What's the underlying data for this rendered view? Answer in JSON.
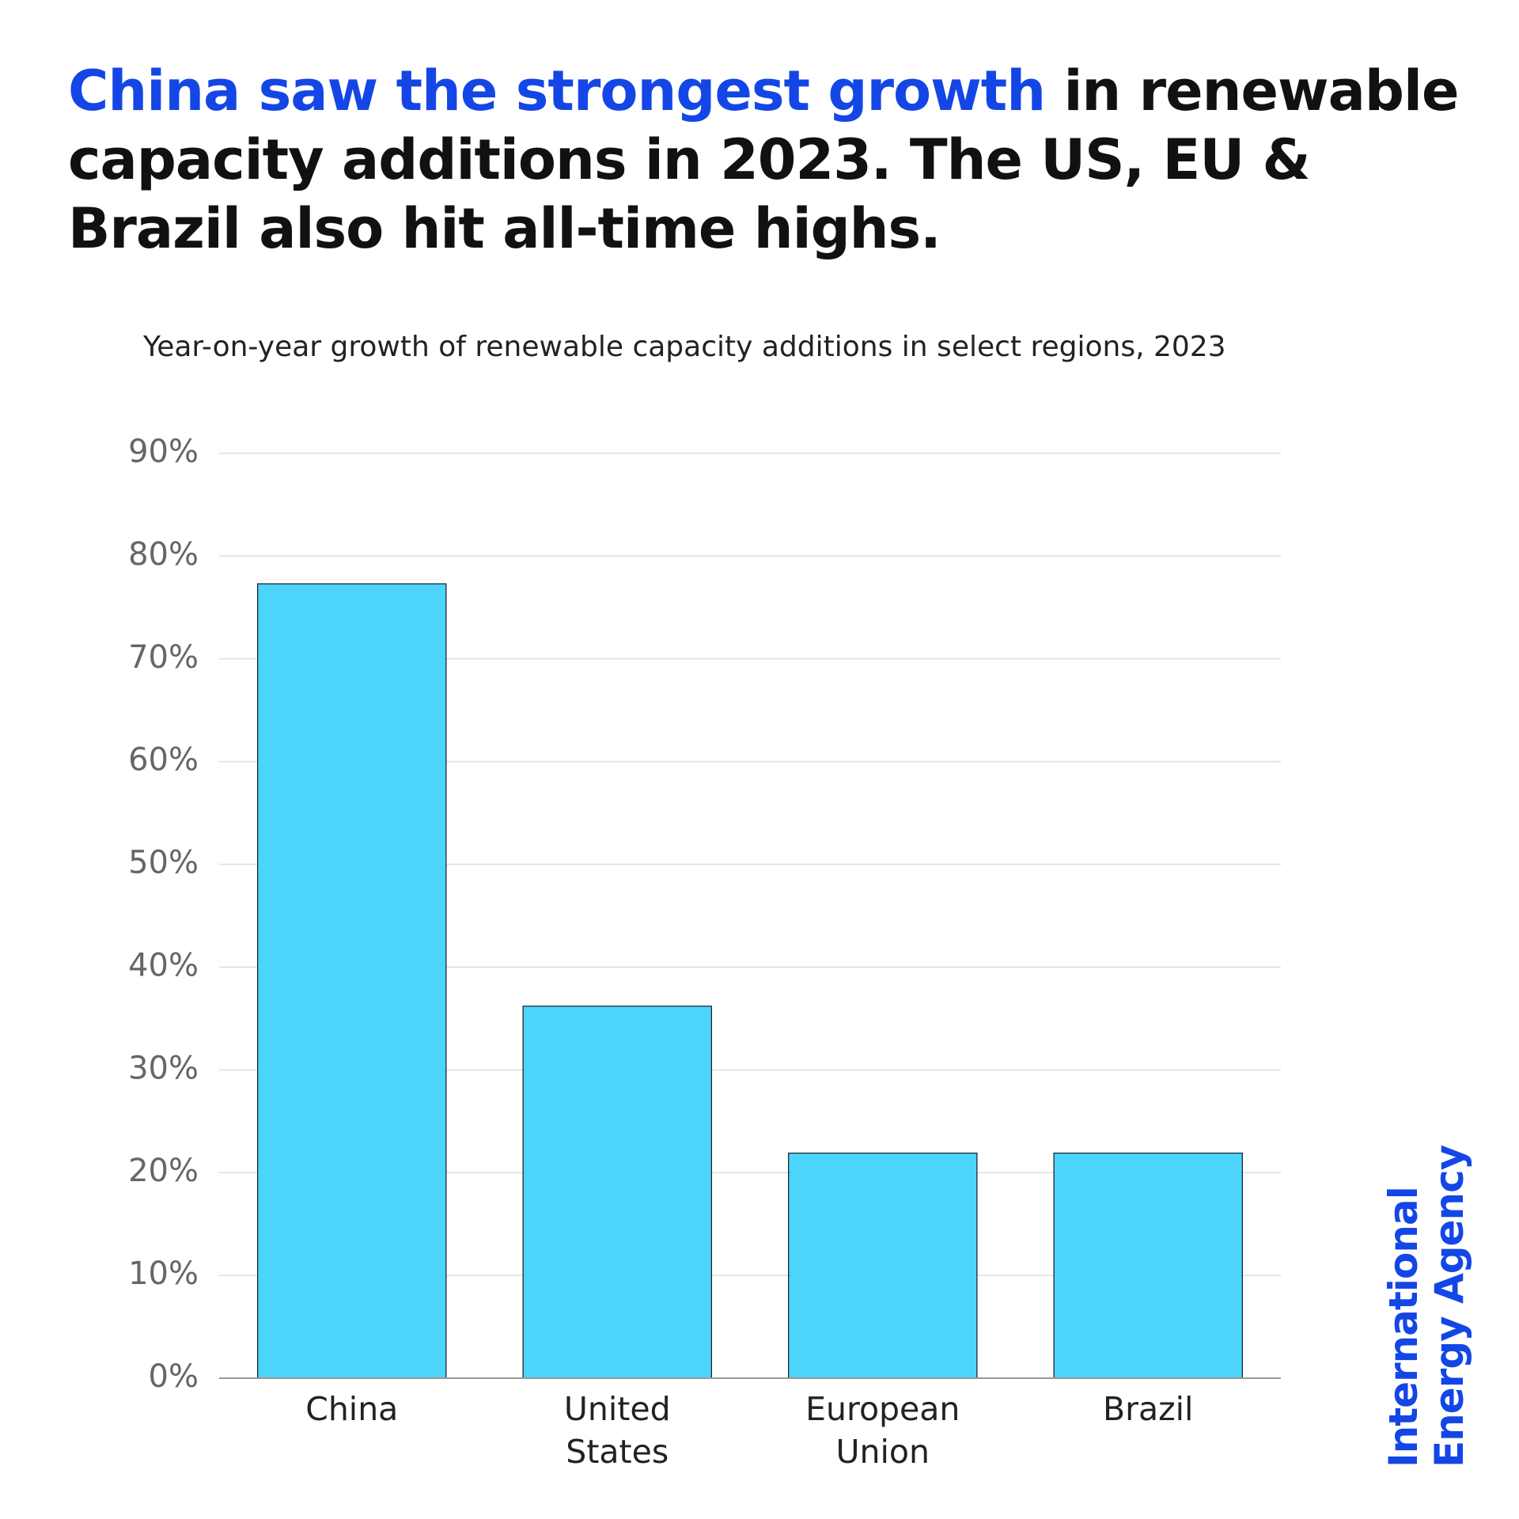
{
  "chart_data": {
    "type": "bar",
    "title_highlight": "China saw the strongest growth",
    "title": "in renewable capacity additions in 2023. The US, EU & Brazil also hit all-time highs.",
    "title_highlight_color": "#1446e6",
    "subtitle": "Year-on-year growth of renewable capacity additions in select regions, 2023",
    "categories": [
      "China",
      "United States",
      "European Union",
      "Brazil"
    ],
    "values": [
      77.3,
      36.2,
      21.9,
      21.9
    ],
    "color": "#4dd4fb",
    "ylim": [
      0,
      90
    ],
    "yticks": [
      {
        "value": 0,
        "label": "0%"
      },
      {
        "value": 10,
        "label": "10%"
      },
      {
        "value": 20,
        "label": "20%"
      },
      {
        "value": 30,
        "label": "30%"
      },
      {
        "value": 40,
        "label": "40%"
      },
      {
        "value": 50,
        "label": "50%"
      },
      {
        "value": 60,
        "label": "60%"
      },
      {
        "value": 70,
        "label": "70%"
      },
      {
        "value": 80,
        "label": "80%"
      },
      {
        "value": 90,
        "label": "90%"
      }
    ],
    "grid": true,
    "logo_lines": [
      "International",
      "Energy Agency"
    ],
    "logo_color": "#1446e6"
  }
}
